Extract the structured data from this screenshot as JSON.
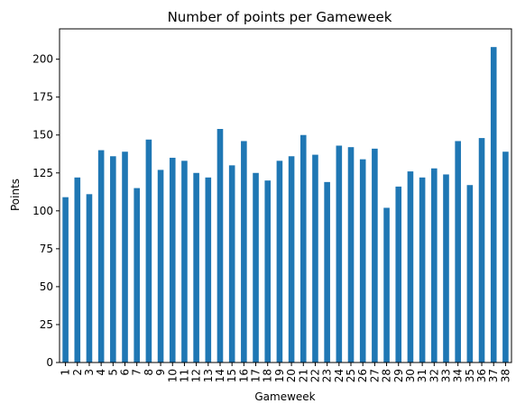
{
  "chart_data": {
    "type": "bar",
    "title": "Number of points per Gameweek",
    "xlabel": "Gameweek",
    "ylabel": "Points",
    "categories": [
      "1",
      "2",
      "3",
      "4",
      "5",
      "6",
      "7",
      "8",
      "9",
      "10",
      "11",
      "12",
      "13",
      "14",
      "15",
      "16",
      "17",
      "18",
      "19",
      "20",
      "21",
      "22",
      "23",
      "24",
      "25",
      "26",
      "27",
      "28",
      "29",
      "30",
      "31",
      "32",
      "33",
      "34",
      "35",
      "36",
      "37",
      "38"
    ],
    "values": [
      109,
      122,
      111,
      140,
      136,
      139,
      115,
      147,
      127,
      135,
      133,
      125,
      122,
      154,
      130,
      146,
      125,
      120,
      133,
      136,
      150,
      137,
      119,
      143,
      142,
      134,
      141,
      102,
      116,
      126,
      122,
      128,
      124,
      146,
      117,
      148,
      208,
      139
    ],
    "ylim": [
      0,
      220
    ],
    "yticks": [
      0,
      25,
      50,
      75,
      100,
      125,
      150,
      175,
      200
    ],
    "grid": false,
    "bar_color": "#1f77b4"
  }
}
